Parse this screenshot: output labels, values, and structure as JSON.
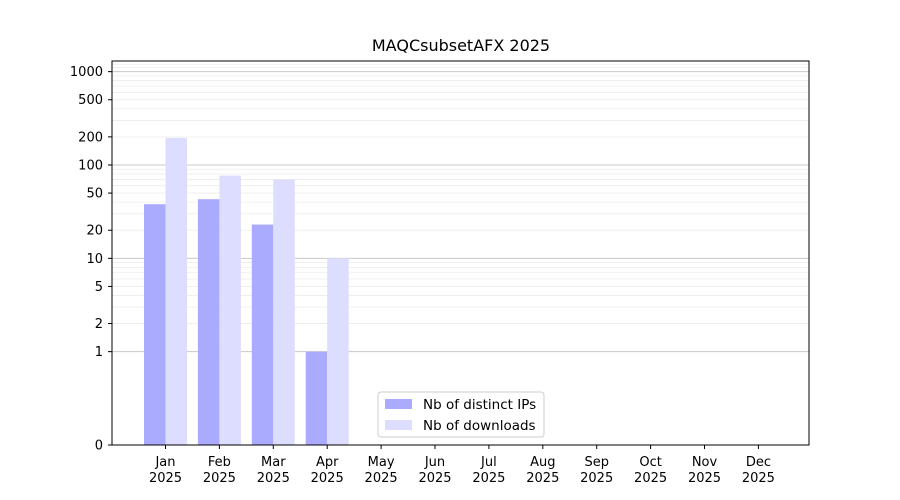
{
  "chart_data": {
    "type": "bar",
    "title": "MAQCsubsetAFX 2025",
    "xlabel": "",
    "ylabel": "",
    "yscale": "symlog",
    "ylim": [
      0,
      1300
    ],
    "grid": "y-major-and-minor",
    "legend_position": "bottom-center",
    "categories": [
      [
        "Jan",
        "2025"
      ],
      [
        "Feb",
        "2025"
      ],
      [
        "Mar",
        "2025"
      ],
      [
        "Apr",
        "2025"
      ],
      [
        "May",
        "2025"
      ],
      [
        "Jun",
        "2025"
      ],
      [
        "Jul",
        "2025"
      ],
      [
        "Aug",
        "2025"
      ],
      [
        "Sep",
        "2025"
      ],
      [
        "Oct",
        "2025"
      ],
      [
        "Nov",
        "2025"
      ],
      [
        "Dec",
        "2025"
      ]
    ],
    "yticks": [
      {
        "value": 0,
        "label": "0"
      },
      {
        "value": 1,
        "label": "1"
      },
      {
        "value": 2,
        "label": "2"
      },
      {
        "value": 5,
        "label": "5"
      },
      {
        "value": 10,
        "label": "10"
      },
      {
        "value": 20,
        "label": "20"
      },
      {
        "value": 50,
        "label": "50"
      },
      {
        "value": 100,
        "label": "100"
      },
      {
        "value": 200,
        "label": "200"
      },
      {
        "value": 500,
        "label": "500"
      },
      {
        "value": 1000,
        "label": "1000"
      }
    ],
    "series": [
      {
        "name": "Nb of distinct IPs",
        "color": "#aaaaff",
        "values": [
          38,
          43,
          23,
          1,
          0,
          0,
          0,
          0,
          0,
          0,
          0,
          0
        ]
      },
      {
        "name": "Nb of downloads",
        "color": "#ddddff",
        "values": [
          195,
          77,
          70,
          10,
          0,
          0,
          0,
          0,
          0,
          0,
          0,
          0
        ]
      }
    ]
  }
}
